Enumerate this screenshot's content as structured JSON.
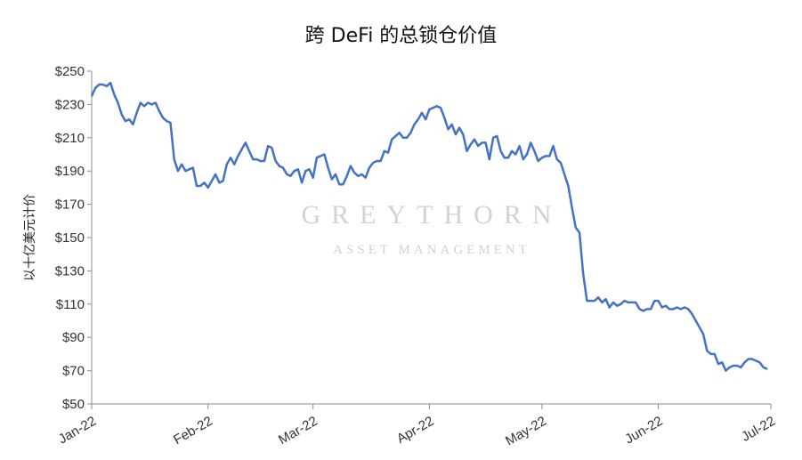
{
  "chart_data": {
    "type": "line",
    "title": "跨 DeFi 的总锁仓价值",
    "ylabel": "以十亿美元计价",
    "xlabel": "",
    "ylim": [
      50,
      250
    ],
    "ytick_values": [
      50,
      70,
      90,
      110,
      130,
      150,
      170,
      190,
      210,
      230,
      250
    ],
    "ytick_labels": [
      "$50",
      "$70",
      "$90",
      "$110",
      "$130",
      "$150",
      "$170",
      "$190",
      "$210",
      "$230",
      "$250"
    ],
    "xticks": [
      {
        "label": "Jan-22",
        "date": "2022-01-01"
      },
      {
        "label": "Feb-22",
        "date": "2022-02-01"
      },
      {
        "label": "Mar-22",
        "date": "2022-03-01"
      },
      {
        "label": "Apr-22",
        "date": "2022-04-01"
      },
      {
        "label": "May-22",
        "date": "2022-05-01"
      },
      {
        "label": "Jun-22",
        "date": "2022-06-01"
      },
      {
        "label": "Jul-22",
        "date": "2022-07-01"
      }
    ],
    "grid": false,
    "line_color": "#4472c4",
    "series": [
      {
        "values": [
          [
            "2022-01-01",
            235
          ],
          [
            "2022-01-02",
            240
          ],
          [
            "2022-01-03",
            242
          ],
          [
            "2022-01-04",
            242
          ],
          [
            "2022-01-05",
            241
          ],
          [
            "2022-01-06",
            243
          ],
          [
            "2022-01-07",
            236
          ],
          [
            "2022-01-08",
            231
          ],
          [
            "2022-01-09",
            224
          ],
          [
            "2022-01-10",
            220
          ],
          [
            "2022-01-11",
            221
          ],
          [
            "2022-01-12",
            218
          ],
          [
            "2022-01-13",
            225
          ],
          [
            "2022-01-14",
            231
          ],
          [
            "2022-01-15",
            229
          ],
          [
            "2022-01-16",
            231
          ],
          [
            "2022-01-17",
            230
          ],
          [
            "2022-01-18",
            231
          ],
          [
            "2022-01-19",
            226
          ],
          [
            "2022-01-20",
            222
          ],
          [
            "2022-01-21",
            220
          ],
          [
            "2022-01-22",
            219
          ],
          [
            "2022-01-23",
            197
          ],
          [
            "2022-01-24",
            190
          ],
          [
            "2022-01-25",
            194
          ],
          [
            "2022-01-26",
            190
          ],
          [
            "2022-01-27",
            191
          ],
          [
            "2022-01-28",
            192
          ],
          [
            "2022-01-29",
            181
          ],
          [
            "2022-01-30",
            181
          ],
          [
            "2022-01-31",
            183
          ],
          [
            "2022-02-01",
            180
          ],
          [
            "2022-02-02",
            184
          ],
          [
            "2022-02-03",
            188
          ],
          [
            "2022-02-04",
            183
          ],
          [
            "2022-02-05",
            184
          ],
          [
            "2022-02-06",
            194
          ],
          [
            "2022-02-07",
            198
          ],
          [
            "2022-02-08",
            194
          ],
          [
            "2022-02-09",
            199
          ],
          [
            "2022-02-10",
            203
          ],
          [
            "2022-02-11",
            207
          ],
          [
            "2022-02-12",
            202
          ],
          [
            "2022-02-13",
            197
          ],
          [
            "2022-02-14",
            197
          ],
          [
            "2022-02-15",
            196
          ],
          [
            "2022-02-16",
            196
          ],
          [
            "2022-02-17",
            205
          ],
          [
            "2022-02-18",
            204
          ],
          [
            "2022-02-19",
            196
          ],
          [
            "2022-02-20",
            193
          ],
          [
            "2022-02-21",
            192
          ],
          [
            "2022-02-22",
            188
          ],
          [
            "2022-02-23",
            187
          ],
          [
            "2022-02-24",
            190
          ],
          [
            "2022-02-25",
            191
          ],
          [
            "2022-02-26",
            183
          ],
          [
            "2022-02-27",
            190
          ],
          [
            "2022-02-28",
            191
          ],
          [
            "2022-03-01",
            186
          ],
          [
            "2022-03-02",
            198
          ],
          [
            "2022-03-03",
            199
          ],
          [
            "2022-03-04",
            200
          ],
          [
            "2022-03-05",
            192
          ],
          [
            "2022-03-06",
            185
          ],
          [
            "2022-03-07",
            188
          ],
          [
            "2022-03-08",
            182
          ],
          [
            "2022-03-09",
            182
          ],
          [
            "2022-03-10",
            187
          ],
          [
            "2022-03-11",
            193
          ],
          [
            "2022-03-12",
            189
          ],
          [
            "2022-03-13",
            187
          ],
          [
            "2022-03-14",
            188
          ],
          [
            "2022-03-15",
            186
          ],
          [
            "2022-03-16",
            192
          ],
          [
            "2022-03-17",
            195
          ],
          [
            "2022-03-18",
            196
          ],
          [
            "2022-03-19",
            196
          ],
          [
            "2022-03-20",
            202
          ],
          [
            "2022-03-21",
            201
          ],
          [
            "2022-03-22",
            209
          ],
          [
            "2022-03-23",
            211
          ],
          [
            "2022-03-24",
            213
          ],
          [
            "2022-03-25",
            210
          ],
          [
            "2022-03-26",
            210
          ],
          [
            "2022-03-27",
            213
          ],
          [
            "2022-03-28",
            218
          ],
          [
            "2022-03-29",
            221
          ],
          [
            "2022-03-30",
            225
          ],
          [
            "2022-03-31",
            221
          ],
          [
            "2022-04-01",
            227
          ],
          [
            "2022-04-02",
            228
          ],
          [
            "2022-04-03",
            229
          ],
          [
            "2022-04-04",
            228
          ],
          [
            "2022-04-05",
            222
          ],
          [
            "2022-04-06",
            215
          ],
          [
            "2022-04-07",
            218
          ],
          [
            "2022-04-08",
            212
          ],
          [
            "2022-04-09",
            216
          ],
          [
            "2022-04-10",
            212
          ],
          [
            "2022-04-11",
            202
          ],
          [
            "2022-04-12",
            206
          ],
          [
            "2022-04-13",
            209
          ],
          [
            "2022-04-14",
            205
          ],
          [
            "2022-04-15",
            207
          ],
          [
            "2022-04-16",
            207
          ],
          [
            "2022-04-17",
            197
          ],
          [
            "2022-04-18",
            210
          ],
          [
            "2022-04-19",
            211
          ],
          [
            "2022-04-20",
            202
          ],
          [
            "2022-04-21",
            198
          ],
          [
            "2022-04-22",
            198
          ],
          [
            "2022-04-23",
            202
          ],
          [
            "2022-04-24",
            200
          ],
          [
            "2022-04-25",
            205
          ],
          [
            "2022-04-26",
            197
          ],
          [
            "2022-04-27",
            200
          ],
          [
            "2022-04-28",
            207
          ],
          [
            "2022-04-29",
            202
          ],
          [
            "2022-04-30",
            196
          ],
          [
            "2022-05-01",
            198
          ],
          [
            "2022-05-02",
            199
          ],
          [
            "2022-05-03",
            199
          ],
          [
            "2022-05-04",
            205
          ],
          [
            "2022-05-05",
            197
          ],
          [
            "2022-05-06",
            195
          ],
          [
            "2022-05-07",
            188
          ],
          [
            "2022-05-08",
            181
          ],
          [
            "2022-05-09",
            168
          ],
          [
            "2022-05-10",
            156
          ],
          [
            "2022-05-11",
            153
          ],
          [
            "2022-05-12",
            128
          ],
          [
            "2022-05-13",
            112
          ],
          [
            "2022-05-14",
            112
          ],
          [
            "2022-05-15",
            112
          ],
          [
            "2022-05-16",
            114
          ],
          [
            "2022-05-17",
            111
          ],
          [
            "2022-05-18",
            113
          ],
          [
            "2022-05-19",
            108
          ],
          [
            "2022-05-20",
            111
          ],
          [
            "2022-05-21",
            109
          ],
          [
            "2022-05-22",
            110
          ],
          [
            "2022-05-23",
            112
          ],
          [
            "2022-05-24",
            111
          ],
          [
            "2022-05-25",
            111
          ],
          [
            "2022-05-26",
            111
          ],
          [
            "2022-05-27",
            107
          ],
          [
            "2022-05-28",
            106
          ],
          [
            "2022-05-29",
            107
          ],
          [
            "2022-05-30",
            107
          ],
          [
            "2022-05-31",
            112
          ],
          [
            "2022-06-01",
            112
          ],
          [
            "2022-06-02",
            108
          ],
          [
            "2022-06-03",
            109
          ],
          [
            "2022-06-04",
            107
          ],
          [
            "2022-06-05",
            107
          ],
          [
            "2022-06-06",
            108
          ],
          [
            "2022-06-07",
            107
          ],
          [
            "2022-06-08",
            108
          ],
          [
            "2022-06-09",
            107
          ],
          [
            "2022-06-10",
            104
          ],
          [
            "2022-06-11",
            100
          ],
          [
            "2022-06-12",
            96
          ],
          [
            "2022-06-13",
            92
          ],
          [
            "2022-06-14",
            82
          ],
          [
            "2022-06-15",
            80
          ],
          [
            "2022-06-16",
            80
          ],
          [
            "2022-06-17",
            74
          ],
          [
            "2022-06-18",
            75
          ],
          [
            "2022-06-19",
            70
          ],
          [
            "2022-06-20",
            72
          ],
          [
            "2022-06-21",
            73
          ],
          [
            "2022-06-22",
            73
          ],
          [
            "2022-06-23",
            72
          ],
          [
            "2022-06-24",
            75
          ],
          [
            "2022-06-25",
            77
          ],
          [
            "2022-06-26",
            77
          ],
          [
            "2022-06-27",
            76
          ],
          [
            "2022-06-28",
            75
          ],
          [
            "2022-06-29",
            72
          ],
          [
            "2022-06-30",
            71
          ]
        ]
      }
    ]
  },
  "watermark": {
    "line1": "GREYTHORN",
    "line2": "ASSET MANAGEMENT"
  }
}
